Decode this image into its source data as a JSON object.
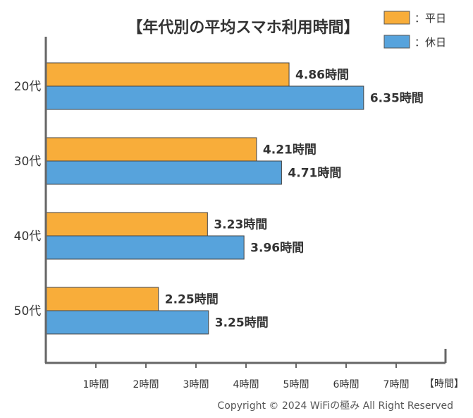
{
  "chart_data": {
    "type": "bar",
    "orientation": "horizontal",
    "title": "【年代別の平均スマホ利用時間】",
    "categories": [
      "20代",
      "30代",
      "40代",
      "50代"
    ],
    "series": [
      {
        "name": "：平日",
        "values": [
          4.86,
          4.21,
          3.23,
          2.25
        ],
        "color": "#F8AD3A",
        "labels": [
          "4.86時間",
          "4.21時間",
          "3.23時間",
          "2.25時間"
        ]
      },
      {
        "name": "：休日",
        "values": [
          6.35,
          4.71,
          3.96,
          3.25
        ],
        "color": "#57A3DC",
        "labels": [
          "6.35時間",
          "4.71時間",
          "3.96時間",
          "3.25時間"
        ]
      }
    ],
    "x_ticks": [
      "1時間",
      "2時間",
      "3時間",
      "4時間",
      "5時間",
      "6時間",
      "7時間"
    ],
    "x_unit_label": "【時間】",
    "xlim": [
      0,
      8
    ],
    "grid": false,
    "legend_position": "top-right"
  },
  "footer": {
    "copyright": "Copyright © 2024 WiFiの極み All Right Reserved"
  }
}
